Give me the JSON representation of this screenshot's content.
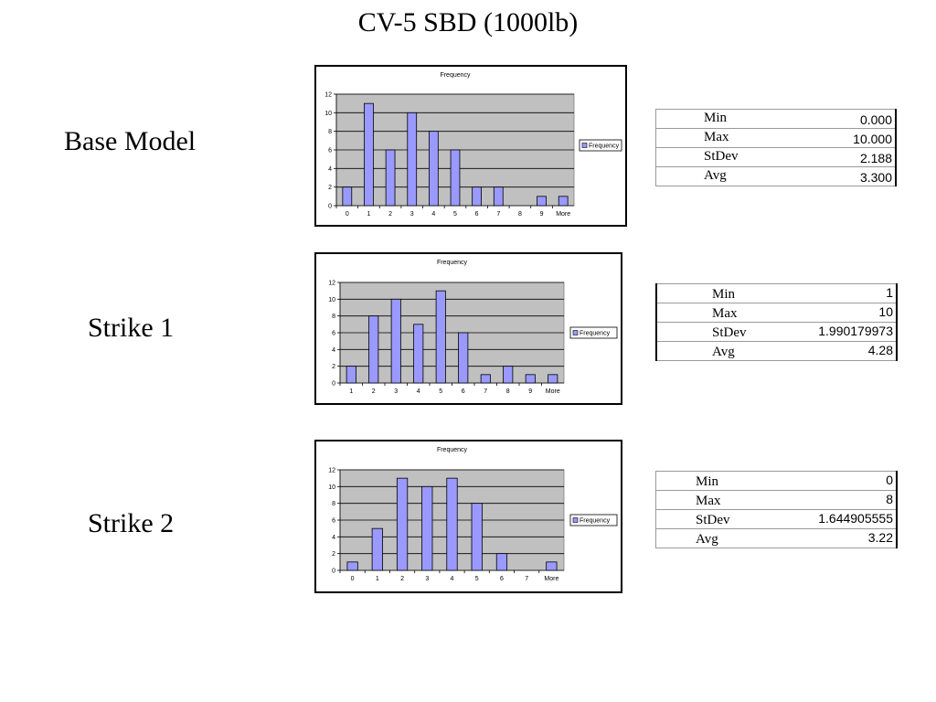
{
  "title": "CV-5 SBD (1000lb)",
  "colors": {
    "bar_fill": "#9999ff",
    "plot_bg": "#c0c0c0",
    "frame": "#000000"
  },
  "rows": [
    {
      "label": "Base Model",
      "stats": [
        {
          "label": "Min",
          "value": "0.000"
        },
        {
          "label": "Max",
          "value": "10.000"
        },
        {
          "label": "StDev",
          "value": "2.188"
        },
        {
          "label": "Avg",
          "value": "3.300"
        }
      ]
    },
    {
      "label": "Strike 1",
      "stats": [
        {
          "label": "Min",
          "value": "1"
        },
        {
          "label": "Max",
          "value": "10"
        },
        {
          "label": "StDev",
          "value": "1.990179973"
        },
        {
          "label": "Avg",
          "value": "4.28"
        }
      ]
    },
    {
      "label": "Strike 2",
      "stats": [
        {
          "label": "Min",
          "value": "0"
        },
        {
          "label": "Max",
          "value": "8"
        },
        {
          "label": "StDev",
          "value": "1.644905555"
        },
        {
          "label": "Avg",
          "value": "3.22"
        }
      ]
    }
  ],
  "chart_data": [
    {
      "type": "bar",
      "title": "Frequency",
      "categories": [
        "0",
        "1",
        "2",
        "3",
        "4",
        "5",
        "6",
        "7",
        "8",
        "9",
        "More"
      ],
      "series": [
        {
          "name": "Frequency",
          "values": [
            2,
            11,
            6,
            10,
            8,
            6,
            2,
            2,
            0,
            1,
            1
          ]
        }
      ],
      "ylim": [
        0,
        12
      ],
      "yticks": [
        "0",
        "2",
        "4",
        "6",
        "8",
        "10",
        "12"
      ],
      "grid": true,
      "legend": "right"
    },
    {
      "type": "bar",
      "title": "Frequency",
      "categories": [
        "1",
        "2",
        "3",
        "4",
        "5",
        "6",
        "7",
        "8",
        "9",
        "More"
      ],
      "series": [
        {
          "name": "Frequency",
          "values": [
            2,
            8,
            10,
            7,
            11,
            6,
            1,
            2,
            1,
            1
          ]
        }
      ],
      "ylim": [
        0,
        12
      ],
      "yticks": [
        "0",
        "2",
        "4",
        "6",
        "8",
        "10",
        "12"
      ],
      "grid": true,
      "legend": "right"
    },
    {
      "type": "bar",
      "title": "Frequency",
      "categories": [
        "0",
        "1",
        "2",
        "3",
        "4",
        "5",
        "6",
        "7",
        "More"
      ],
      "series": [
        {
          "name": "Frequency",
          "values": [
            1,
            5,
            11,
            10,
            11,
            8,
            2,
            0,
            1
          ]
        }
      ],
      "ylim": [
        0,
        12
      ],
      "yticks": [
        "0",
        "2",
        "4",
        "6",
        "8",
        "10",
        "12"
      ],
      "grid": true,
      "legend": "right"
    }
  ]
}
